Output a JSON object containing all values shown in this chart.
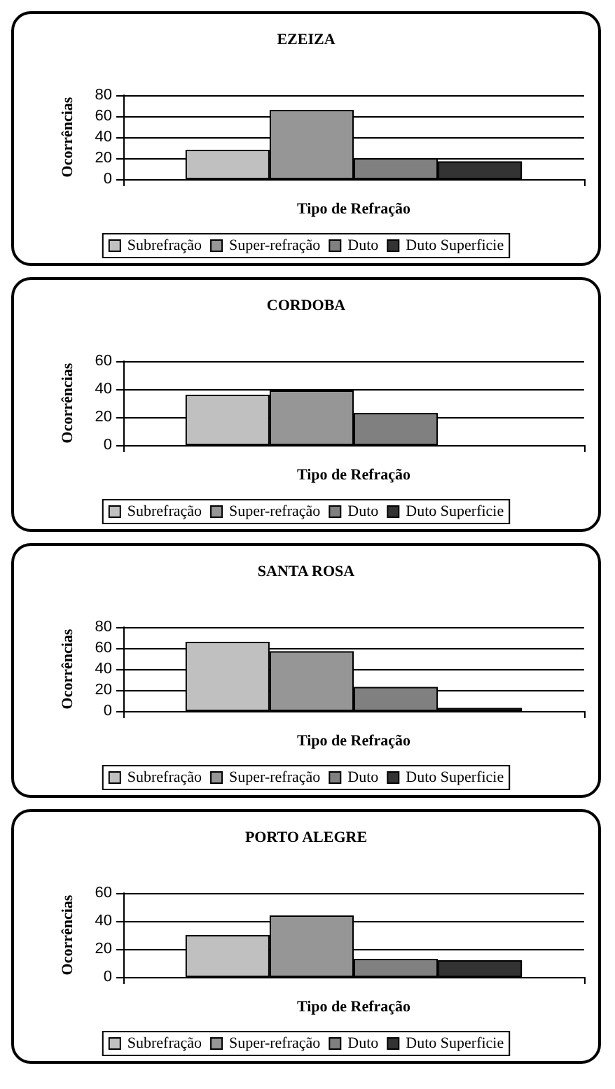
{
  "chart_data": [
    {
      "type": "bar",
      "title": "EZEIZA",
      "xlabel": "Tipo de Refração",
      "ylabel": "Ocorrências",
      "categories": [
        null
      ],
      "ylim": [
        0,
        80
      ],
      "yticks": [
        0,
        20,
        40,
        60,
        80
      ],
      "grid": "y",
      "legend": "bottom",
      "series": [
        {
          "name": "Subrefração",
          "color": "#c0c0c0",
          "values": [
            28
          ]
        },
        {
          "name": "Super-refração",
          "color": "#969696",
          "values": [
            66
          ]
        },
        {
          "name": "Duto",
          "color": "#808080",
          "values": [
            20
          ]
        },
        {
          "name": "Duto Superficie",
          "color": "#333333",
          "values": [
            17
          ]
        }
      ]
    },
    {
      "type": "bar",
      "title": "CORDOBA",
      "xlabel": "Tipo de Refração",
      "ylabel": "Ocorrências",
      "categories": [
        null
      ],
      "ylim": [
        0,
        60
      ],
      "yticks": [
        0,
        20,
        40,
        60
      ],
      "grid": "y",
      "legend": "bottom",
      "series": [
        {
          "name": "Subrefração",
          "color": "#c0c0c0",
          "values": [
            36
          ]
        },
        {
          "name": "Super-refração",
          "color": "#969696",
          "values": [
            39
          ]
        },
        {
          "name": "Duto",
          "color": "#808080",
          "values": [
            23
          ]
        },
        {
          "name": "Duto Superficie",
          "color": "#333333",
          "values": [
            0
          ]
        }
      ]
    },
    {
      "type": "bar",
      "title": "SANTA ROSA",
      "xlabel": "Tipo de Refração",
      "ylabel": "Ocorrências",
      "categories": [
        null
      ],
      "ylim": [
        0,
        80
      ],
      "yticks": [
        0,
        20,
        40,
        60,
        80
      ],
      "grid": "y",
      "legend": "bottom",
      "series": [
        {
          "name": "Subrefração",
          "color": "#c0c0c0",
          "values": [
            66
          ]
        },
        {
          "name": "Super-refração",
          "color": "#969696",
          "values": [
            57
          ]
        },
        {
          "name": "Duto",
          "color": "#808080",
          "values": [
            23
          ]
        },
        {
          "name": "Duto Superficie",
          "color": "#333333",
          "values": [
            3
          ]
        }
      ]
    },
    {
      "type": "bar",
      "title": "PORTO ALEGRE",
      "xlabel": "Tipo de Refração",
      "ylabel": "Ocorrências",
      "categories": [
        null
      ],
      "ylim": [
        0,
        60
      ],
      "yticks": [
        0,
        20,
        40,
        60
      ],
      "grid": "y",
      "legend": "bottom",
      "series": [
        {
          "name": "Subrefração",
          "color": "#c0c0c0",
          "values": [
            30
          ]
        },
        {
          "name": "Super-refração",
          "color": "#969696",
          "values": [
            44
          ]
        },
        {
          "name": "Duto",
          "color": "#808080",
          "values": [
            13
          ]
        },
        {
          "name": "Duto Superficie",
          "color": "#333333",
          "values": [
            12
          ]
        }
      ]
    }
  ]
}
